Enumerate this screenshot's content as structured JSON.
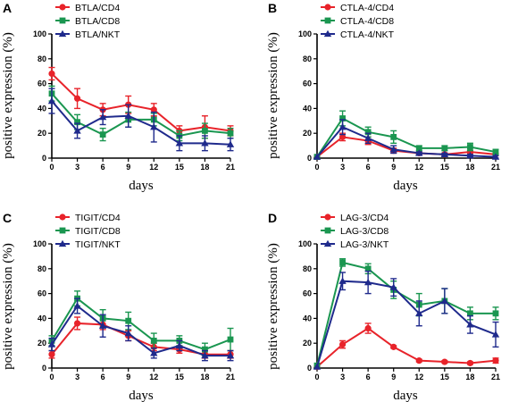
{
  "colors": {
    "red": "#e8232a",
    "green": "#1a9650",
    "navy": "#1f2a8c"
  },
  "chart_data": [
    {
      "type": "line",
      "panel_label": "A",
      "xlabel": "days",
      "ylabel": "positive expression (%)",
      "x": [
        0,
        3,
        6,
        9,
        12,
        15,
        18,
        21
      ],
      "xlim": [
        0,
        21
      ],
      "ylim": [
        0,
        100
      ],
      "yticks": [
        0,
        20,
        40,
        60,
        80,
        100
      ],
      "legend_position": "top-left",
      "series": [
        {
          "name": "BTLA/CD4",
          "color": "#e8232a",
          "marker": "circle",
          "values": [
            68,
            48,
            39,
            43,
            39,
            22,
            25,
            22
          ],
          "error": [
            5,
            8,
            5,
            7,
            5,
            4,
            9,
            4
          ]
        },
        {
          "name": "BTLA/CD8",
          "color": "#1a9650",
          "marker": "square",
          "values": [
            52,
            29,
            19,
            31,
            31,
            18,
            22,
            20
          ],
          "error": [
            6,
            6,
            5,
            6,
            5,
            4,
            6,
            4
          ]
        },
        {
          "name": "BTLA/NKT",
          "color": "#1f2a8c",
          "marker": "triangle",
          "values": [
            46,
            22,
            33,
            34,
            25,
            12,
            12,
            11
          ],
          "error": [
            10,
            6,
            6,
            9,
            12,
            6,
            6,
            5
          ]
        }
      ]
    },
    {
      "type": "line",
      "panel_label": "B",
      "xlabel": "days",
      "ylabel": "positive expression (%)",
      "x": [
        0,
        3,
        6,
        9,
        12,
        15,
        18,
        21
      ],
      "xlim": [
        0,
        21
      ],
      "ylim": [
        0,
        100
      ],
      "yticks": [
        0,
        20,
        40,
        60,
        80,
        100
      ],
      "legend_position": "top-left",
      "series": [
        {
          "name": "CTLA-4/CD4",
          "color": "#e8232a",
          "marker": "circle",
          "values": [
            1,
            17,
            14,
            6,
            4,
            3,
            5,
            3
          ],
          "error": [
            0,
            3,
            3,
            2,
            1,
            1,
            1,
            1
          ]
        },
        {
          "name": "CTLA-4/CD8",
          "color": "#1a9650",
          "marker": "square",
          "values": [
            1,
            32,
            21,
            17,
            8,
            8,
            9,
            5
          ],
          "error": [
            0,
            6,
            4,
            5,
            2,
            2,
            3,
            2
          ]
        },
        {
          "name": "CTLA-4/NKT",
          "color": "#1f2a8c",
          "marker": "triangle",
          "values": [
            1,
            25,
            16,
            7,
            4,
            3,
            2,
            1
          ],
          "error": [
            0,
            6,
            4,
            3,
            1,
            1,
            1,
            1
          ]
        }
      ]
    },
    {
      "type": "line",
      "panel_label": "C",
      "xlabel": "days",
      "ylabel": "positive expression (%)",
      "x": [
        0,
        3,
        6,
        9,
        12,
        15,
        18,
        21
      ],
      "xlim": [
        0,
        21
      ],
      "ylim": [
        0,
        100
      ],
      "yticks": [
        0,
        20,
        40,
        60,
        80,
        100
      ],
      "legend_position": "top-left",
      "series": [
        {
          "name": "TIGIT/CD4",
          "color": "#e8232a",
          "marker": "circle",
          "values": [
            11,
            36,
            35,
            26,
            17,
            15,
            11,
            11
          ],
          "error": [
            3,
            5,
            4,
            4,
            3,
            3,
            3,
            3
          ]
        },
        {
          "name": "TIGIT/CD8",
          "color": "#1a9650",
          "marker": "square",
          "values": [
            22,
            56,
            40,
            38,
            22,
            22,
            15,
            23
          ],
          "error": [
            4,
            6,
            7,
            7,
            6,
            4,
            5,
            9
          ]
        },
        {
          "name": "TIGIT/NKT",
          "color": "#1f2a8c",
          "marker": "triangle",
          "values": [
            19,
            50,
            34,
            28,
            12,
            18,
            10,
            10
          ],
          "error": [
            5,
            6,
            9,
            6,
            4,
            4,
            4,
            4
          ]
        }
      ]
    },
    {
      "type": "line",
      "panel_label": "D",
      "xlabel": "days",
      "ylabel": "positive expression (%)",
      "x": [
        0,
        3,
        6,
        9,
        12,
        15,
        18,
        21
      ],
      "xlim": [
        0,
        21
      ],
      "ylim": [
        0,
        100
      ],
      "yticks": [
        0,
        20,
        40,
        60,
        80,
        100
      ],
      "legend_position": "top-left",
      "series": [
        {
          "name": "LAG-3/CD4",
          "color": "#e8232a",
          "marker": "circle",
          "values": [
            1,
            19,
            32,
            17,
            6,
            5,
            4,
            6
          ],
          "error": [
            0,
            3,
            4,
            1,
            1,
            1,
            1,
            2
          ]
        },
        {
          "name": "LAG-3/CD8",
          "color": "#1a9650",
          "marker": "square",
          "values": [
            2,
            85,
            80,
            63,
            51,
            54,
            44,
            44
          ],
          "error": [
            0,
            3,
            4,
            7,
            9,
            10,
            5,
            5
          ]
        },
        {
          "name": "LAG-3/NKT",
          "color": "#1f2a8c",
          "marker": "triangle",
          "values": [
            1,
            70,
            69,
            65,
            44,
            54,
            35,
            27
          ],
          "error": [
            0,
            7,
            9,
            7,
            10,
            10,
            7,
            10
          ]
        }
      ]
    }
  ]
}
